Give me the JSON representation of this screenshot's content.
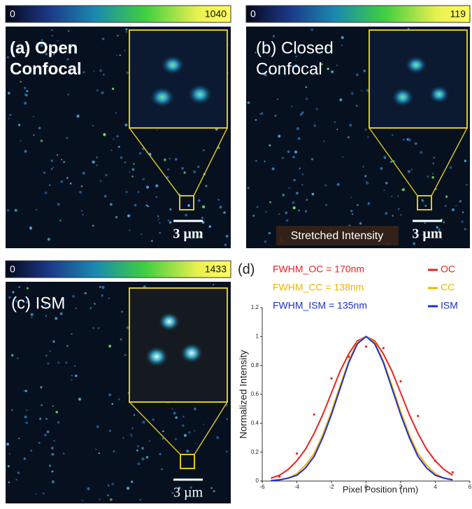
{
  "panels": [
    {
      "colorbar_min": 0,
      "colorbar_max": 1040,
      "label": [
        "(a) Open",
        "Confocal"
      ],
      "scale_bar": "3 µm"
    },
    {
      "colorbar_min": 0,
      "colorbar_max": 119,
      "label": [
        "(b) Closed",
        "Confocal"
      ],
      "note": "Stretched Intensity",
      "scale_bar": "3 µm"
    },
    {
      "colorbar_min": 0,
      "colorbar_max": 1433,
      "label": [
        "(c) ISM"
      ],
      "scale_bar": "3 µm"
    }
  ],
  "chart_data": {
    "type": "line",
    "panel_label": "(d)",
    "annotations": [
      {
        "text": "FWHM_OC = 170nm",
        "color": "#e8231f"
      },
      {
        "text": "FWHM_CC = 138nm",
        "color": "#f0b400"
      },
      {
        "text": "FWHM_ISM = 135nm",
        "color": "#1f2fd0"
      }
    ],
    "x": [
      -5.5,
      -5,
      -4.5,
      -4,
      -3.5,
      -3,
      -2.5,
      -2,
      -1.5,
      -1,
      -0.5,
      0,
      0.5,
      1,
      1.5,
      2,
      2.5,
      3,
      3.5,
      4,
      4.5,
      5
    ],
    "series": [
      {
        "name": "OC",
        "color": "#e8231f",
        "values": [
          0.02,
          0.04,
          0.08,
          0.14,
          0.22,
          0.33,
          0.46,
          0.61,
          0.76,
          0.88,
          0.97,
          1,
          0.97,
          0.88,
          0.76,
          0.61,
          0.46,
          0.33,
          0.22,
          0.14,
          0.08,
          0.04
        ]
      },
      {
        "name": "CC",
        "color": "#f0b400",
        "values": [
          0.004,
          0.01,
          0.02,
          0.05,
          0.11,
          0.19,
          0.32,
          0.48,
          0.66,
          0.83,
          0.96,
          1,
          0.96,
          0.83,
          0.66,
          0.48,
          0.32,
          0.19,
          0.11,
          0.05,
          0.02,
          0.01
        ]
      },
      {
        "name": "ISM",
        "color": "#1f2fd0",
        "values": [
          0.003,
          0.008,
          0.02,
          0.04,
          0.09,
          0.17,
          0.3,
          0.46,
          0.64,
          0.82,
          0.95,
          1,
          0.95,
          0.82,
          0.64,
          0.46,
          0.3,
          0.17,
          0.09,
          0.04,
          0.02,
          0.008
        ]
      }
    ],
    "markers": {
      "color": "#e8231f",
      "x": [
        -5,
        -4,
        -3,
        -2,
        -1,
        0,
        1,
        2,
        3,
        4,
        5
      ],
      "values": [
        0.03,
        0.19,
        0.46,
        0.71,
        0.86,
        0.93,
        0.92,
        0.69,
        0.45,
        0.14,
        0.06
      ]
    },
    "xlabel": "Pixel Position (nm)",
    "ylabel": "Normalized Intensity",
    "xlim": [
      -6,
      6
    ],
    "ylim": [
      0,
      1.2
    ],
    "xticks": [
      -6,
      -4,
      -2,
      0,
      2,
      4,
      6
    ],
    "yticks": [
      0,
      0.2,
      0.4,
      0.6,
      0.8,
      1,
      1.2
    ],
    "legend": "upper right"
  }
}
